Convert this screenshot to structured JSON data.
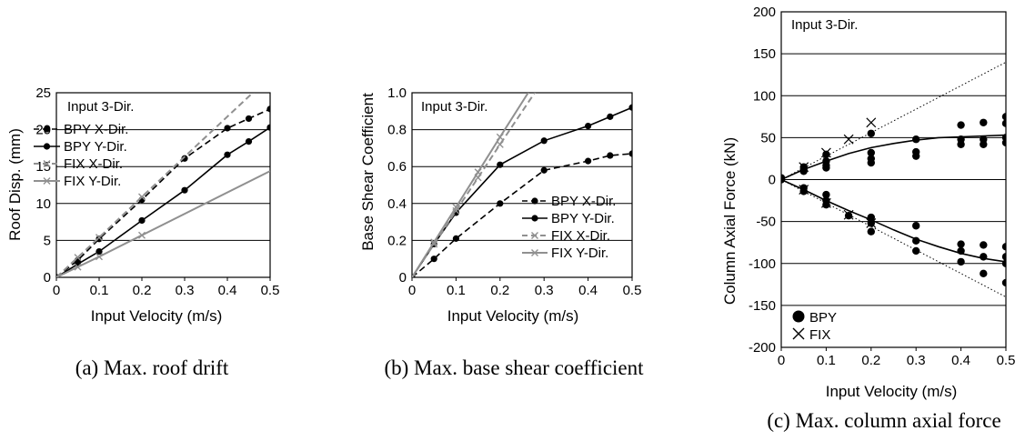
{
  "chart_data": [
    {
      "type": "line",
      "caption": "(a) Max. roof drift",
      "annotation": "Input 3-Dir.",
      "xlabel": "Input Velocity (m/s)",
      "ylabel": "Roof Disp. (mm)",
      "xlim": [
        0,
        0.5
      ],
      "ylim": [
        0,
        25
      ],
      "xticks": [
        "0",
        "0.1",
        "0.2",
        "0.3",
        "0.4",
        "0.5"
      ],
      "yticks": [
        "0",
        "5",
        "10",
        "15",
        "20",
        "25"
      ],
      "grid": "horizontal",
      "legend_position": "top-left",
      "series": [
        {
          "name": "BPY X-Dir.",
          "style": "dashed",
          "marker": "dot",
          "color": "#000000",
          "x": [
            0,
            0.05,
            0.1,
            0.2,
            0.3,
            0.4,
            0.45,
            0.5
          ],
          "y": [
            0,
            2.3,
            5.2,
            10.5,
            16.1,
            20.2,
            21.5,
            22.8
          ]
        },
        {
          "name": "BPY Y-Dir.",
          "style": "solid",
          "marker": "dot",
          "color": "#000000",
          "x": [
            0,
            0.05,
            0.1,
            0.2,
            0.3,
            0.4,
            0.45,
            0.5
          ],
          "y": [
            0,
            1.8,
            3.5,
            7.7,
            11.8,
            16.6,
            18.4,
            20.3
          ]
        },
        {
          "name": "FIX X-Dir.",
          "style": "dashed",
          "marker": "x",
          "color": "#909090",
          "x": [
            0,
            0.05,
            0.1,
            0.2,
            0.5
          ],
          "y": [
            0,
            2.7,
            5.4,
            10.9,
            27.2
          ]
        },
        {
          "name": "FIX Y-Dir.",
          "style": "solid",
          "marker": "x",
          "color": "#909090",
          "x": [
            0,
            0.05,
            0.1,
            0.2,
            0.5
          ],
          "y": [
            0,
            1.4,
            2.8,
            5.7,
            14.4
          ]
        }
      ]
    },
    {
      "type": "line",
      "caption": "(b) Max. base shear coefficient",
      "annotation": "Input 3-Dir.",
      "xlabel": "Input Velocity (m/s)",
      "ylabel": "Base Shear Coefficient",
      "xlim": [
        0,
        0.5
      ],
      "ylim": [
        0,
        1.0
      ],
      "xticks": [
        "0",
        "0.1",
        "0.2",
        "0.3",
        "0.4",
        "0.5"
      ],
      "yticks": [
        "0",
        "0.2",
        "0.4",
        "0.6",
        "0.8",
        "1.0"
      ],
      "grid": "horizontal",
      "legend_position": "bottom-right",
      "series": [
        {
          "name": "BPY X-Dir.",
          "style": "dashed",
          "marker": "dot",
          "color": "#000000",
          "x": [
            0,
            0.05,
            0.1,
            0.2,
            0.3,
            0.4,
            0.45,
            0.5
          ],
          "y": [
            0,
            0.1,
            0.21,
            0.4,
            0.58,
            0.63,
            0.66,
            0.67
          ]
        },
        {
          "name": "BPY Y-Dir.",
          "style": "solid",
          "marker": "dot",
          "color": "#000000",
          "x": [
            0,
            0.05,
            0.1,
            0.2,
            0.3,
            0.4,
            0.45,
            0.5
          ],
          "y": [
            0,
            0.18,
            0.35,
            0.61,
            0.74,
            0.82,
            0.87,
            0.92
          ]
        },
        {
          "name": "FIX X-Dir.",
          "style": "dashed",
          "marker": "x",
          "color": "#909090",
          "x": [
            0,
            0.05,
            0.1,
            0.15,
            0.2,
            0.29
          ],
          "y": [
            0,
            0.18,
            0.36,
            0.54,
            0.72,
            1.04
          ]
        },
        {
          "name": "FIX Y-Dir.",
          "style": "solid",
          "marker": "x",
          "color": "#909090",
          "x": [
            0,
            0.05,
            0.1,
            0.15,
            0.2,
            0.28
          ],
          "y": [
            0,
            0.19,
            0.38,
            0.57,
            0.76,
            1.06
          ]
        }
      ]
    },
    {
      "type": "scatter",
      "caption": "(c) Max. column axial force",
      "annotation": "Input 3-Dir.",
      "xlabel": "Input Velocity (m/s)",
      "ylabel": "Column Axial Force (kN)",
      "xlim": [
        0,
        0.5
      ],
      "ylim": [
        -200,
        200
      ],
      "xticks": [
        "0",
        "0.1",
        "0.2",
        "0.3",
        "0.4",
        "0.5"
      ],
      "yticks": [
        "200",
        "150",
        "100",
        "50",
        "0",
        "-50",
        "-100",
        "-150",
        "-200"
      ],
      "grid": "horizontal",
      "legend_position": "bottom-left",
      "legend": [
        {
          "name": "BPY",
          "marker": "dot"
        },
        {
          "name": "FIX",
          "marker": "x"
        }
      ],
      "bpy_points": {
        "x": [
          0,
          0,
          0.05,
          0.05,
          0.05,
          0.1,
          0.1,
          0.1,
          0.1,
          0.2,
          0.2,
          0.2,
          0.2,
          0.3,
          0.3,
          0.3,
          0.4,
          0.4,
          0.4,
          0.45,
          0.45,
          0.45,
          0.5,
          0.5,
          0.5,
          0.5,
          0.05,
          0.05,
          0.1,
          0.1,
          0.1,
          0.15,
          0.2,
          0.2,
          0.2,
          0.3,
          0.3,
          0.3,
          0.4,
          0.4,
          0.4,
          0.45,
          0.45,
          0.45,
          0.5,
          0.5,
          0.5,
          0.5
        ],
        "y": [
          2,
          0,
          15,
          12,
          10,
          30,
          22,
          17,
          14,
          55,
          32,
          25,
          20,
          48,
          33,
          28,
          65,
          48,
          42,
          68,
          48,
          42,
          75,
          67,
          50,
          44,
          -10,
          -14,
          -18,
          -25,
          -30,
          -43,
          -45,
          -52,
          -62,
          -55,
          -73,
          -85,
          -77,
          -85,
          -98,
          -78,
          -92,
          -112,
          -80,
          -92,
          -100,
          -123
        ]
      },
      "fix_points": {
        "x": [
          0.05,
          0.1,
          0.15,
          0.2,
          0.05,
          0.1,
          0.15,
          0.2
        ],
        "y": [
          15,
          32,
          48,
          68,
          -12,
          -28,
          -42,
          -52
        ]
      },
      "fits": [
        {
          "style": "solid",
          "x": [
            0,
            0.05,
            0.1,
            0.15,
            0.2,
            0.25,
            0.3,
            0.35,
            0.4,
            0.45,
            0.5
          ],
          "y": [
            0,
            12,
            22,
            31,
            38,
            43,
            47,
            50,
            51,
            52,
            53
          ]
        },
        {
          "style": "solid",
          "x": [
            0,
            0.05,
            0.1,
            0.15,
            0.2,
            0.25,
            0.3,
            0.35,
            0.4,
            0.45,
            0.5
          ],
          "y": [
            0,
            -12,
            -25,
            -37,
            -48,
            -60,
            -71,
            -80,
            -88,
            -94,
            -98
          ]
        },
        {
          "style": "dotted",
          "x": [
            0,
            0.5
          ],
          "y": [
            0,
            140
          ]
        },
        {
          "style": "dotted",
          "x": [
            0,
            0.5
          ],
          "y": [
            0,
            -140
          ]
        }
      ]
    }
  ]
}
